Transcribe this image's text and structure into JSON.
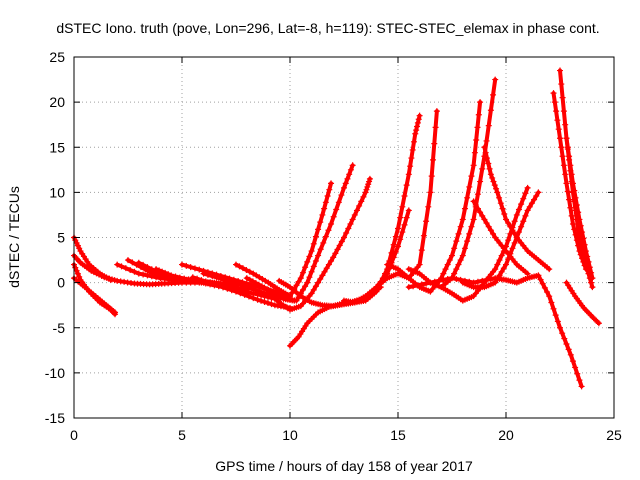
{
  "chart_data": {
    "type": "scatter",
    "title": "dSTEC Iono. truth (pove, Lon=296, Lat=-8, h=119): STEC-STEC_elemax in phase cont.",
    "xlabel": "GPS time / hours of day 158 of year 2017",
    "ylabel": "dSTEC  / TECUs",
    "xlim": [
      0,
      25
    ],
    "ylim": [
      -15,
      25
    ],
    "xticks": [
      0,
      5,
      10,
      15,
      20,
      25
    ],
    "yticks": [
      -15,
      -10,
      -5,
      0,
      5,
      10,
      15,
      20,
      25
    ],
    "grid": true,
    "marker": "+",
    "color": "#ff0000",
    "series": [
      {
        "x": [
          0.0,
          0.3,
          0.7,
          1.2,
          1.7
        ],
        "y": [
          5.0,
          3.5,
          2.0,
          1.0,
          0.3
        ]
      },
      {
        "x": [
          0.0,
          0.3,
          0.8,
          1.4,
          2.0,
          2.8,
          3.5,
          4.2,
          5.0,
          6.0,
          7.0
        ],
        "y": [
          3.0,
          2.2,
          1.3,
          0.6,
          0.2,
          -0.1,
          -0.2,
          -0.1,
          0.0,
          0.0,
          -0.1
        ]
      },
      {
        "x": [
          0.0,
          0.3,
          0.7,
          1.2,
          1.7,
          1.9
        ],
        "y": [
          2.0,
          0.3,
          -1.0,
          -2.2,
          -3.0,
          -3.5
        ]
      },
      {
        "x": [
          0.0,
          0.5,
          1.0,
          1.5,
          1.9
        ],
        "y": [
          0.5,
          -0.5,
          -1.5,
          -2.5,
          -3.3
        ]
      },
      {
        "x": [
          2.0,
          3.0,
          4.0,
          5.0,
          6.0,
          7.0
        ],
        "y": [
          2.0,
          1.0,
          0.5,
          0.2,
          0.1,
          -0.2
        ]
      },
      {
        "x": [
          2.5,
          3.5,
          4.5,
          5.5,
          6.5,
          7.5
        ],
        "y": [
          2.5,
          1.2,
          0.6,
          0.3,
          0.0,
          -0.3
        ]
      },
      {
        "x": [
          3.0,
          4.0,
          5.0,
          6.0,
          7.0,
          8.0
        ],
        "y": [
          2.2,
          1.0,
          0.4,
          0.0,
          -0.4,
          -0.8
        ]
      },
      {
        "x": [
          3.8,
          4.5,
          5.5,
          6.5,
          7.5,
          8.5,
          9.3
        ],
        "y": [
          1.5,
          0.8,
          0.2,
          -0.3,
          -0.8,
          -1.3,
          -1.8
        ]
      },
      {
        "x": [
          5.0,
          6.0,
          7.0,
          8.0,
          9.0,
          9.6,
          10.0
        ],
        "y": [
          2.0,
          1.3,
          0.6,
          -0.1,
          -0.8,
          -1.2,
          -1.5
        ]
      },
      {
        "x": [
          6.0,
          7.0,
          8.0,
          9.0,
          9.7,
          10.2
        ],
        "y": [
          1.0,
          0.3,
          -0.5,
          -1.3,
          -1.8,
          -2.0
        ]
      },
      {
        "x": [
          5.5,
          6.5,
          7.5,
          8.5,
          9.3,
          10.0
        ],
        "y": [
          0.6,
          -0.2,
          -1.0,
          -1.9,
          -2.5,
          -2.8
        ]
      },
      {
        "x": [
          7.5,
          8.3,
          9.0,
          9.5,
          10.0,
          10.5,
          11.0,
          11.5,
          11.9
        ],
        "y": [
          2.0,
          1.0,
          0.0,
          -0.8,
          -1.5,
          0.5,
          3.5,
          7.5,
          11.0
        ]
      },
      {
        "x": [
          8.0,
          8.7,
          9.3,
          9.8,
          10.3,
          10.8,
          11.3,
          11.9,
          12.5,
          12.9
        ],
        "y": [
          0.5,
          -0.4,
          -1.2,
          -1.8,
          -2.0,
          0.0,
          3.0,
          6.5,
          10.5,
          13.0
        ]
      },
      {
        "x": [
          9.0,
          9.5,
          10.0,
          10.5,
          11.0,
          11.5,
          12.0,
          12.5,
          13.0,
          13.5,
          13.7
        ],
        "y": [
          -1.0,
          -2.2,
          -3.0,
          -2.6,
          -1.2,
          0.8,
          2.8,
          5.0,
          7.5,
          10.0,
          11.5
        ]
      },
      {
        "x": [
          9.5,
          10.0,
          10.5,
          11.0,
          11.5,
          12.0,
          12.5,
          13.0,
          13.5,
          14.0,
          14.5,
          15.0,
          15.5
        ],
        "y": [
          0.2,
          -0.5,
          -1.5,
          -2.2,
          -2.5,
          -2.6,
          -2.4,
          -2.2,
          -1.5,
          -0.5,
          1.0,
          4.0,
          8.0
        ]
      },
      {
        "x": [
          10.0,
          10.4,
          10.8,
          11.3,
          11.8,
          12.3,
          12.8,
          13.3,
          13.8,
          14.2
        ],
        "y": [
          -7.0,
          -6.0,
          -4.5,
          -3.3,
          -2.7,
          -2.4,
          -2.2,
          -1.8,
          -1.2,
          -0.5
        ]
      },
      {
        "x": [
          12.5,
          13.0,
          13.5,
          14.0,
          14.5,
          15.0,
          15.5,
          15.8,
          16.0
        ],
        "y": [
          -2.0,
          -2.2,
          -2.0,
          -1.0,
          1.5,
          6.0,
          12.0,
          16.5,
          18.5
        ]
      },
      {
        "x": [
          14.0,
          14.5,
          15.0,
          15.5,
          16.0,
          16.5,
          16.8
        ],
        "y": [
          -0.5,
          0.5,
          1.0,
          0.5,
          2.0,
          10.0,
          19.0
        ]
      },
      {
        "x": [
          14.5,
          15.0,
          15.5,
          16.0,
          16.5,
          17.0,
          17.5,
          18.0,
          18.5,
          18.8
        ],
        "y": [
          2.0,
          1.5,
          0.5,
          -0.5,
          -1.0,
          0.5,
          3.0,
          7.0,
          13.0,
          20.0
        ]
      },
      {
        "x": [
          15.5,
          16.0,
          16.5,
          17.0,
          17.5,
          18.0,
          18.5,
          19.0,
          19.5
        ],
        "y": [
          1.5,
          1.0,
          0.0,
          -0.5,
          0.5,
          3.0,
          7.0,
          14.0,
          22.5
        ]
      },
      {
        "x": [
          15.5,
          16.5,
          17.5,
          18.5,
          19.5,
          20.0,
          20.5,
          21.0,
          21.5,
          22.0,
          22.5,
          23.0,
          23.5
        ],
        "y": [
          -0.5,
          0.0,
          0.5,
          0.0,
          0.5,
          0.3,
          0.0,
          0.5,
          0.8,
          -1.5,
          -5.0,
          -8.0,
          -11.5
        ]
      },
      {
        "x": [
          17.0,
          17.5,
          18.0,
          18.5,
          19.0,
          19.5,
          20.0,
          20.5,
          21.0
        ],
        "y": [
          -0.5,
          -1.2,
          -2.0,
          -1.5,
          0.0,
          1.5,
          4.0,
          7.5,
          10.5
        ]
      },
      {
        "x": [
          18.0,
          18.5,
          19.0,
          19.5,
          20.0,
          20.5,
          21.0,
          21.5
        ],
        "y": [
          0.0,
          -0.5,
          -0.5,
          0.0,
          2.0,
          5.0,
          8.0,
          10.0
        ]
      },
      {
        "x": [
          18.5,
          19.0,
          19.5,
          20.0,
          20.5,
          21.0
        ],
        "y": [
          9.0,
          7.0,
          5.0,
          3.5,
          2.0,
          1.0
        ]
      },
      {
        "x": [
          19.0,
          19.3,
          19.6,
          20.0,
          20.5,
          21.0,
          21.5,
          22.0
        ],
        "y": [
          15.0,
          12.0,
          10.0,
          7.0,
          5.0,
          3.5,
          2.5,
          1.5
        ]
      },
      {
        "x": [
          22.5,
          22.8,
          23.1,
          23.4,
          23.7,
          24.0
        ],
        "y": [
          23.5,
          16.0,
          10.0,
          5.0,
          2.0,
          -0.5
        ]
      },
      {
        "x": [
          22.2,
          22.5,
          22.8,
          23.1,
          23.4,
          23.7
        ],
        "y": [
          21.0,
          16.0,
          11.0,
          6.5,
          3.5,
          1.5
        ]
      },
      {
        "x": [
          22.8,
          23.1,
          23.4,
          23.7,
          24.0
        ],
        "y": [
          16.0,
          11.0,
          7.0,
          3.5,
          0.5
        ]
      },
      {
        "x": [
          22.8,
          23.2,
          23.6,
          24.0,
          24.3
        ],
        "y": [
          0.0,
          -1.5,
          -2.8,
          -3.8,
          -4.5
        ]
      }
    ]
  }
}
